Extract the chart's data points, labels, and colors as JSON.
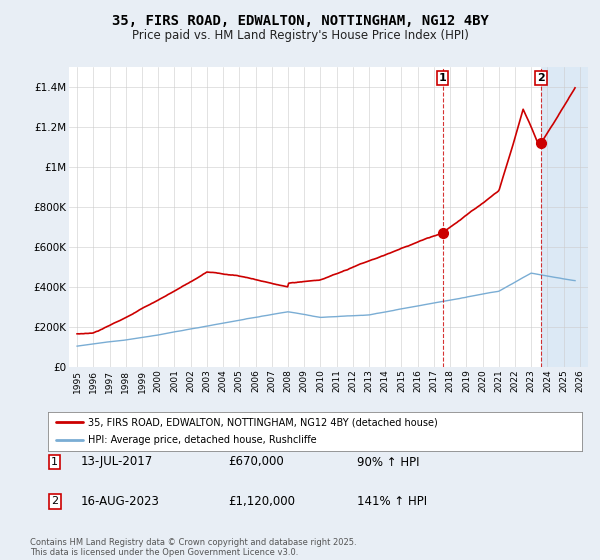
{
  "title": "35, FIRS ROAD, EDWALTON, NOTTINGHAM, NG12 4BY",
  "subtitle": "Price paid vs. HM Land Registry's House Price Index (HPI)",
  "legend_line1": "35, FIRS ROAD, EDWALTON, NOTTINGHAM, NG12 4BY (detached house)",
  "legend_line2": "HPI: Average price, detached house, Rushcliffe",
  "annotation1_label": "1",
  "annotation1_date": "13-JUL-2017",
  "annotation1_price": "£670,000",
  "annotation1_hpi": "90% ↑ HPI",
  "annotation2_label": "2",
  "annotation2_date": "16-AUG-2023",
  "annotation2_price": "£1,120,000",
  "annotation2_hpi": "141% ↑ HPI",
  "footer": "Contains HM Land Registry data © Crown copyright and database right 2025.\nThis data is licensed under the Open Government Licence v3.0.",
  "red_color": "#cc0000",
  "blue_color": "#7aadd4",
  "shade_color": "#dce9f5",
  "background_color": "#e8eef5",
  "plot_bg": "#ffffff",
  "marker1_x": 2017.53,
  "marker1_y": 670000,
  "marker2_x": 2023.62,
  "marker2_y": 1120000,
  "vline1_x": 2017.53,
  "vline2_x": 2023.62,
  "ylim": [
    0,
    1500000
  ],
  "xlim": [
    1994.5,
    2026.5
  ]
}
